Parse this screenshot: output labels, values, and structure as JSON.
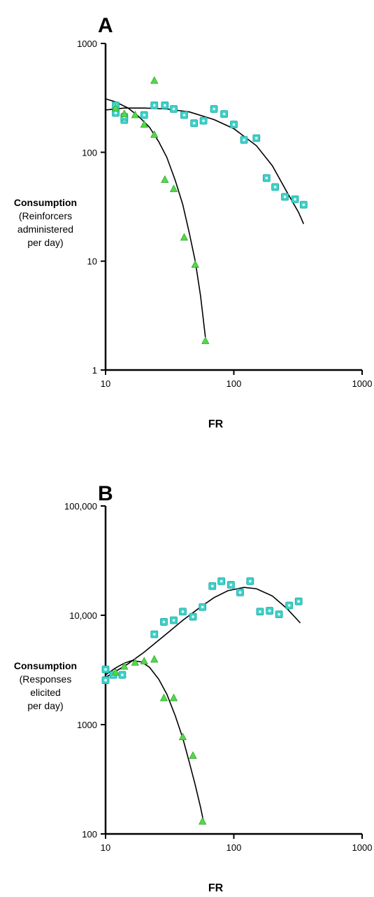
{
  "chart_data": [
    {
      "type": "scatter",
      "panel_label": "A",
      "xlabel": "FR",
      "ylabel": [
        "Consumption",
        "(Reinforcers",
        "administered",
        "per day)"
      ],
      "x_scale": "log",
      "y_scale": "log",
      "xlim": [
        10,
        1000
      ],
      "ylim": [
        1,
        1000
      ],
      "x_ticks": [
        10,
        100,
        1000
      ],
      "x_tick_labels": [
        "10",
        "100",
        "1000"
      ],
      "y_ticks": [
        1,
        10,
        100,
        1000
      ],
      "y_tick_labels": [
        "1",
        "10",
        "100",
        "1000"
      ],
      "grid": false,
      "legend": "none",
      "series": [
        {
          "marker": "square",
          "color": "#3fd0c8",
          "points": [
            [
              12,
              270
            ],
            [
              12,
              230
            ],
            [
              14,
              198
            ],
            [
              14,
              212
            ],
            [
              20,
              220
            ],
            [
              24,
              270
            ],
            [
              29,
              270
            ],
            [
              34,
              250
            ],
            [
              41,
              220
            ],
            [
              49,
              185
            ],
            [
              58,
              195
            ],
            [
              70,
              250
            ],
            [
              84,
              225
            ],
            [
              100,
              180
            ],
            [
              120,
              130
            ],
            [
              150,
              135
            ],
            [
              180,
              58
            ],
            [
              210,
              48
            ],
            [
              250,
              39
            ],
            [
              300,
              37
            ],
            [
              350,
              33
            ]
          ]
        },
        {
          "marker": "triangle",
          "color": "#55d84a",
          "points": [
            [
              12,
              255
            ],
            [
              14,
              225
            ],
            [
              17,
              220
            ],
            [
              20,
              180
            ],
            [
              24,
              455
            ],
            [
              24,
              145
            ],
            [
              29,
              56
            ],
            [
              34,
              46
            ],
            [
              41,
              16.5
            ],
            [
              50,
              9.3
            ],
            [
              60,
              1.85
            ]
          ]
        }
      ],
      "fits": [
        {
          "points": [
            [
              10,
              245
            ],
            [
              14,
              255
            ],
            [
              20,
              255
            ],
            [
              30,
              250
            ],
            [
              45,
              235
            ],
            [
              70,
              200
            ],
            [
              100,
              165
            ],
            [
              150,
              115
            ],
            [
              200,
              75
            ],
            [
              260,
              43
            ],
            [
              320,
              28
            ],
            [
              350,
              22
            ]
          ]
        },
        {
          "points": [
            [
              10,
              310
            ],
            [
              12,
              290
            ],
            [
              15,
              255
            ],
            [
              18,
              215
            ],
            [
              22,
              170
            ],
            [
              26,
              125
            ],
            [
              30,
              90
            ],
            [
              35,
              55
            ],
            [
              40,
              33
            ],
            [
              45,
              18
            ],
            [
              50,
              10
            ],
            [
              55,
              4.8
            ],
            [
              60,
              2
            ]
          ]
        }
      ]
    },
    {
      "type": "scatter",
      "panel_label": "B",
      "xlabel": "FR",
      "ylabel": [
        "Consumption",
        "(Responses",
        "elicited",
        "per day)"
      ],
      "x_scale": "log",
      "y_scale": "log",
      "xlim": [
        10,
        1000
      ],
      "ylim": [
        100,
        100000
      ],
      "x_ticks": [
        10,
        100,
        1000
      ],
      "x_tick_labels": [
        "10",
        "100",
        "1000"
      ],
      "y_ticks": [
        100,
        1000,
        10000,
        100000
      ],
      "y_tick_labels": [
        "100",
        "1000",
        "10,000",
        "100,000"
      ],
      "grid": false,
      "legend": "none",
      "series": [
        {
          "marker": "square",
          "color": "#3fd0c8",
          "points": [
            [
              10,
              3200
            ],
            [
              10,
              2550
            ],
            [
              11.5,
              2850
            ],
            [
              13.5,
              2850
            ],
            [
              24,
              6700
            ],
            [
              28.5,
              8700
            ],
            [
              34,
              9000
            ],
            [
              40,
              10800
            ],
            [
              48,
              9700
            ],
            [
              57,
              11900
            ],
            [
              68,
              18500
            ],
            [
              80,
              20500
            ],
            [
              95,
              19000
            ],
            [
              112,
              16200
            ],
            [
              134,
              20500
            ],
            [
              160,
              10800
            ],
            [
              190,
              11000
            ],
            [
              225,
              10200
            ],
            [
              270,
              12300
            ],
            [
              320,
              13400
            ]
          ]
        },
        {
          "marker": "triangle",
          "color": "#55d84a",
          "points": [
            [
              12,
              3000
            ],
            [
              14,
              3400
            ],
            [
              17,
              3700
            ],
            [
              20,
              3800
            ],
            [
              24,
              3950
            ],
            [
              28.5,
              1750
            ],
            [
              34,
              1750
            ],
            [
              40,
              770
            ],
            [
              48,
              520
            ],
            [
              57,
              130
            ]
          ]
        }
      ],
      "fits": [
        {
          "points": [
            [
              10,
              2700
            ],
            [
              15,
              3600
            ],
            [
              20,
              4600
            ],
            [
              30,
              6800
            ],
            [
              40,
              9000
            ],
            [
              55,
              11900
            ],
            [
              70,
              14500
            ],
            [
              90,
              16800
            ],
            [
              120,
              18000
            ],
            [
              150,
              17500
            ],
            [
              200,
              15000
            ],
            [
              260,
              11500
            ],
            [
              330,
              8500
            ]
          ]
        },
        {
          "points": [
            [
              10,
              2850
            ],
            [
              12,
              3300
            ],
            [
              14,
              3650
            ],
            [
              16,
              3850
            ],
            [
              19,
              3750
            ],
            [
              22,
              3350
            ],
            [
              26,
              2600
            ],
            [
              30,
              1900
            ],
            [
              35,
              1200
            ],
            [
              40,
              750
            ],
            [
              45,
              450
            ],
            [
              50,
              280
            ],
            [
              55,
              175
            ],
            [
              58,
              130
            ]
          ]
        }
      ]
    }
  ]
}
